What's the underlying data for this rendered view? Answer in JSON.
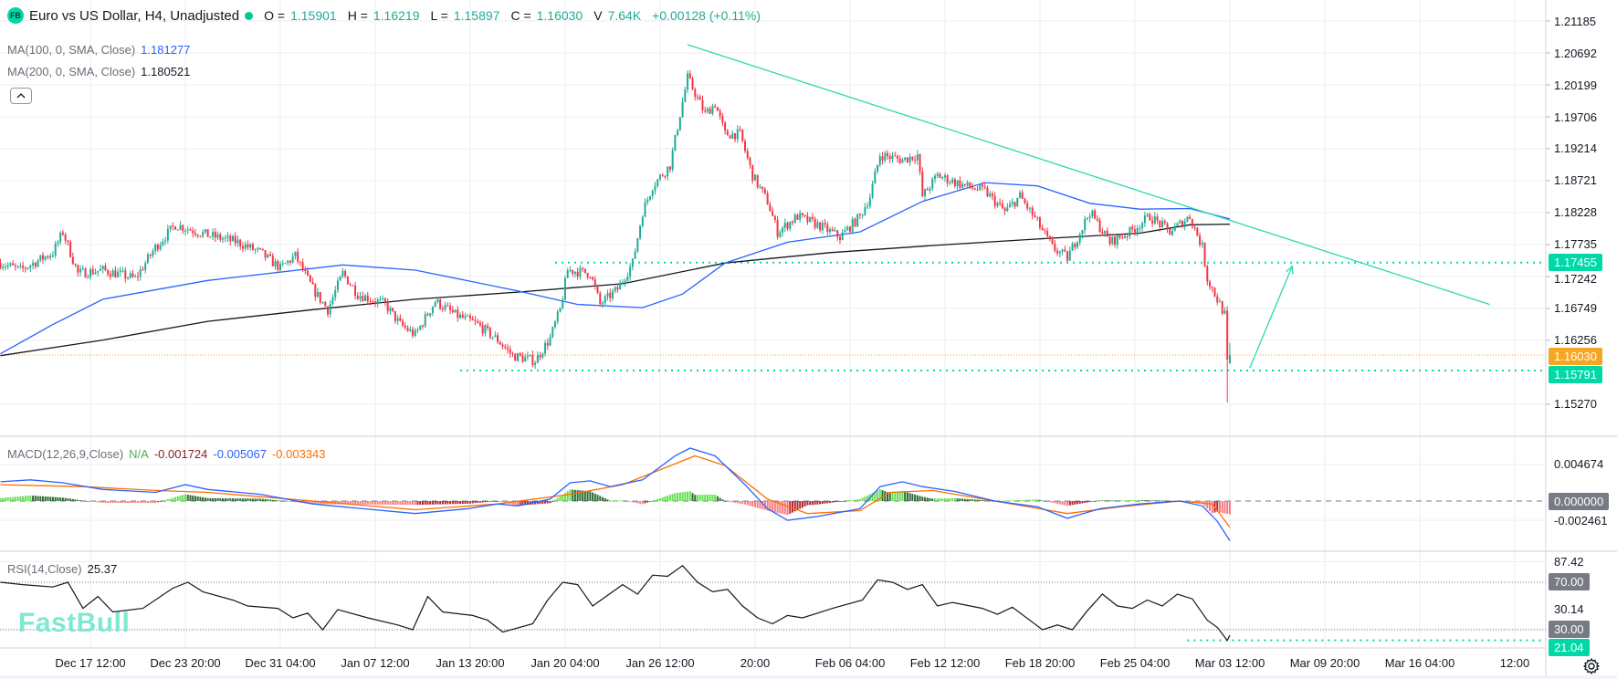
{
  "header": {
    "logo": "FB",
    "title": "Euro vs US Dollar, H4, Unadjusted",
    "status_color": "#00c896",
    "o_label": "O =",
    "o": "1.15901",
    "h_label": "H =",
    "h": "1.16219",
    "l_label": "L =",
    "l": "1.15897",
    "c_label": "C =",
    "c": "1.16030",
    "v_label": "V",
    "v": "7.64K",
    "change": "+0.00128 (+0.11%)"
  },
  "indicators": {
    "ma100": {
      "label": "MA(100, 0, SMA, Close)",
      "value": "1.181277",
      "color": "#2962ff"
    },
    "ma200": {
      "label": "MA(200, 0, SMA, Close)",
      "value": "1.180521",
      "color": "#131722"
    },
    "macd": {
      "label": "MACD(12,26,9,Close)",
      "hist": "N/A",
      "hist_value": "-0.001724",
      "macd_value": "-0.005067",
      "signal_value": "-0.003343"
    },
    "rsi": {
      "label": "RSI(14,Close)",
      "value": "25.37"
    }
  },
  "watermark": "FastBull",
  "colors": {
    "up": "#22ab94",
    "down": "#f23645",
    "drawing": "#2ad8b0",
    "marker_teal": "#00d9a7",
    "marker_orange": "#f5a623",
    "macd_line": "#2962ff",
    "signal_line": "#ff6d00",
    "hist_pos_strong": "#66dd55",
    "hist_pos_weak": "#2e6b35",
    "hist_neg_strong": "#f77c80",
    "hist_neg_weak": "#b22833",
    "rsi_line": "#131722",
    "axis_box": "#787b86",
    "grid": "#eceef2"
  },
  "chart_data": {
    "type": "candlestick",
    "x_ticks": [
      "Dec 17 12:00",
      "Dec 23 20:00",
      "Dec 31 04:00",
      "Jan 07 12:00",
      "Jan 13 20:00",
      "Jan 20 04:00",
      "Jan 26 12:00",
      "20:00",
      "Feb 06 04:00",
      "Feb 12 12:00",
      "Feb 18 20:00",
      "Feb 25 04:00",
      "Mar 03 12:00",
      "Mar 09 20:00",
      "Mar 16 04:00",
      "12:00"
    ],
    "price": {
      "ticks": [
        "1.21185",
        "1.20692",
        "1.20199",
        "1.19706",
        "1.19214",
        "1.18721",
        "1.18228",
        "1.17735",
        "1.17242",
        "1.16749",
        "1.16256",
        "1.15270"
      ],
      "markers": [
        {
          "value": "1.17455",
          "color": "#00d9a7"
        },
        {
          "value": "1.16030",
          "color": "#f5a623"
        },
        {
          "value": "1.15791",
          "color": "#00d9a7"
        }
      ],
      "last_bar": {
        "date": "Mar 03 12:00",
        "open": 1.15901,
        "high": 1.16219,
        "low": 1.15897,
        "close": 1.1603
      },
      "bar_overrides": [
        {
          "date": "Mar 03 08:00",
          "low": 1.153
        }
      ],
      "close_path": [
        [
          "Dec 11 12:00",
          1.1745
        ],
        [
          "Dec 12 20:00",
          1.1734
        ],
        [
          "Dec 15 00:00",
          1.1761
        ],
        [
          "Dec 15 16:00",
          1.1793
        ],
        [
          "Dec 16 16:00",
          1.1729
        ],
        [
          "Dec 18 08:00",
          1.1734
        ],
        [
          "Dec 20 12:00",
          1.1721
        ],
        [
          "Dec 21 20:00",
          1.1769
        ],
        [
          "Dec 23 04:00",
          1.1804
        ],
        [
          "Dec 25 08:00",
          1.1788
        ],
        [
          "Dec 27 08:00",
          1.1777
        ],
        [
          "Dec 28 20:00",
          1.1761
        ],
        [
          "Dec 30 04:00",
          1.1737
        ],
        [
          "Dec 31 04:00",
          1.1756
        ],
        [
          "Jan 01 08:00",
          1.1705
        ],
        [
          "Jan 02 08:00",
          1.1673
        ],
        [
          "Jan 03 08:00",
          1.1729
        ],
        [
          "Jan 04 08:00",
          1.1697
        ],
        [
          "Jan 06 04:00",
          1.1681
        ],
        [
          "Jan 07 04:00",
          1.165
        ],
        [
          "Jan 08 04:00",
          1.1634
        ],
        [
          "Jan 09 12:00",
          1.1686
        ],
        [
          "Jan 10 20:00",
          1.1665
        ],
        [
          "Jan 12 08:00",
          1.165
        ],
        [
          "Jan 13 16:00",
          1.1626
        ],
        [
          "Jan 14 16:00",
          1.1602
        ],
        [
          "Jan 16 04:00",
          1.1594
        ],
        [
          "Jan 17 04:00",
          1.1629
        ],
        [
          "Jan 17 20:00",
          1.1673
        ],
        [
          "Jan 18 08:00",
          1.1734
        ],
        [
          "Jan 19 20:00",
          1.1729
        ],
        [
          "Jan 20 12:00",
          1.1681
        ],
        [
          "Jan 21 16:00",
          1.1705
        ],
        [
          "Jan 22 16:00",
          1.1745
        ],
        [
          "Jan 23 08:00",
          1.1824
        ],
        [
          "Jan 24 00:00",
          1.1864
        ],
        [
          "Jan 25 04:00",
          1.1896
        ],
        [
          "Jan 25 20:00",
          1.1975
        ],
        [
          "Jan 26 08:00",
          1.2031
        ],
        [
          "Jan 27 12:00",
          1.1975
        ],
        [
          "Jan 28 04:00",
          1.1991
        ],
        [
          "Jan 28 20:00",
          1.1944
        ],
        [
          "Jan 29 20:00",
          1.1944
        ],
        [
          "Jan 30 16:00",
          1.188
        ],
        [
          "Jan 31 16:00",
          1.184
        ],
        [
          "Feb 01 08:00",
          1.1793
        ],
        [
          "Feb 02 16:00",
          1.1817
        ],
        [
          "Feb 04 00:00",
          1.1804
        ],
        [
          "Feb 05 12:00",
          1.1785
        ],
        [
          "Feb 06 20:00",
          1.1817
        ],
        [
          "Feb 07 12:00",
          1.1848
        ],
        [
          "Feb 08 04:00",
          1.1912
        ],
        [
          "Feb 09 16:00",
          1.1904
        ],
        [
          "Feb 10 16:00",
          1.1912
        ],
        [
          "Feb 11 00:00",
          1.1848
        ],
        [
          "Feb 12 00:00",
          1.188
        ],
        [
          "Feb 13 20:00",
          1.1864
        ],
        [
          "Feb 15 04:00",
          1.1856
        ],
        [
          "Feb 16 12:00",
          1.1824
        ],
        [
          "Feb 17 12:00",
          1.1848
        ],
        [
          "Feb 18 16:00",
          1.1808
        ],
        [
          "Feb 19 16:00",
          1.1769
        ],
        [
          "Feb 20 16:00",
          1.1753
        ],
        [
          "Feb 22 04:00",
          1.1824
        ],
        [
          "Feb 23 12:00",
          1.1777
        ],
        [
          "Feb 24 20:00",
          1.1793
        ],
        [
          "Feb 26 04:00",
          1.1817
        ],
        [
          "Feb 27 12:00",
          1.1793
        ],
        [
          "Feb 28 20:00",
          1.1817
        ],
        [
          "Mar 01 16:00",
          1.1769
        ],
        [
          "Mar 02 00:00",
          1.1721
        ],
        [
          "Mar 02 16:00",
          1.1689
        ],
        [
          "Mar 03 04:00",
          1.1665
        ],
        [
          "Mar 03 08:00",
          1.159
        ],
        [
          "Mar 03 12:00",
          1.1603
        ]
      ],
      "ma100": [
        [
          "Dec 11 12:00",
          1.1605
        ],
        [
          "Dec 15 00:00",
          1.165
        ],
        [
          "Dec 18 08:00",
          1.1689
        ],
        [
          "Dec 25 08:00",
          1.1718
        ],
        [
          "Jan 03 08:00",
          1.1742
        ],
        [
          "Jan 08 04:00",
          1.1734
        ],
        [
          "Jan 15 00:00",
          1.1702
        ],
        [
          "Jan 19 00:00",
          1.1681
        ],
        [
          "Jan 23 08:00",
          1.1676
        ],
        [
          "Jan 26 00:00",
          1.1697
        ],
        [
          "Jan 28 20:00",
          1.1745
        ],
        [
          "Feb 02 00:00",
          1.1777
        ],
        [
          "Feb 06 20:00",
          1.1793
        ],
        [
          "Feb 11 00:00",
          1.184
        ],
        [
          "Feb 15 04:00",
          1.1869
        ],
        [
          "Feb 18 16:00",
          1.1864
        ],
        [
          "Feb 22 04:00",
          1.1837
        ],
        [
          "Feb 25 12:00",
          1.1828
        ],
        [
          "Feb 28 20:00",
          1.1829
        ],
        [
          "Mar 03 12:00",
          1.1813
        ]
      ],
      "ma200": [
        [
          "Dec 11 12:00",
          1.1602
        ],
        [
          "Dec 18 08:00",
          1.1626
        ],
        [
          "Dec 25 08:00",
          1.1655
        ],
        [
          "Jan 01 08:00",
          1.1673
        ],
        [
          "Jan 08 04:00",
          1.1689
        ],
        [
          "Jan 15 00:00",
          1.17
        ],
        [
          "Jan 22 00:00",
          1.1713
        ],
        [
          "Jan 28 20:00",
          1.1745
        ],
        [
          "Feb 04 20:00",
          1.1761
        ],
        [
          "Feb 11 16:00",
          1.1772
        ],
        [
          "Feb 18 16:00",
          1.1782
        ],
        [
          "Feb 25 12:00",
          1.1791
        ],
        [
          "Feb 28 20:00",
          1.1804
        ],
        [
          "Mar 03 12:00",
          1.1805
        ]
      ]
    },
    "drawings": {
      "trendline": [
        [
          "Jan 26 08:00",
          1.2082
        ],
        [
          "Mar 20 20:00",
          1.1681
        ]
      ],
      "arrow": [
        [
          "Mar 04 20:00",
          1.1583
        ],
        [
          "Mar 07 16:00",
          1.174
        ]
      ],
      "levels": [
        {
          "from": "Jan 17 12:00",
          "value": 1.17455
        },
        {
          "from": "Jan 11 04:00",
          "value": 1.15791
        }
      ],
      "current_price": 1.1603
    },
    "macd": {
      "ticks": [
        "0.004674",
        "-0.002461"
      ],
      "zero_label": "0.000000",
      "macd": [
        [
          "Dec 11 12:00",
          0.00246
        ],
        [
          "Dec 13 12:00",
          0.00271
        ],
        [
          "Dec 15 16:00",
          0.00234
        ],
        [
          "Dec 18 08:00",
          0.00148
        ],
        [
          "Dec 21 20:00",
          0.00111
        ],
        [
          "Dec 23 20:00",
          0.00209
        ],
        [
          "Dec 25 08:00",
          0.00148
        ],
        [
          "Dec 28 20:00",
          0.00086
        ],
        [
          "Jan 01 08:00",
          -0.00037
        ],
        [
          "Jan 04 16:00",
          -0.00098
        ],
        [
          "Jan 08 04:00",
          -0.0016
        ],
        [
          "Jan 11 16:00",
          -0.00098
        ],
        [
          "Jan 13 16:00",
          -0.00037
        ],
        [
          "Jan 15 00:00",
          -0.00062
        ],
        [
          "Jan 17 04:00",
          0.00025
        ],
        [
          "Jan 18 12:00",
          0.00234
        ],
        [
          "Jan 19 20:00",
          0.00258
        ],
        [
          "Jan 21 04:00",
          0.00185
        ],
        [
          "Jan 23 08:00",
          0.00271
        ],
        [
          "Jan 25 12:00",
          0.00578
        ],
        [
          "Jan 26 12:00",
          0.00677
        ],
        [
          "Jan 28 04:00",
          0.00578
        ],
        [
          "Jan 30 04:00",
          0.00209
        ],
        [
          "Jan 31 16:00",
          -0.00098
        ],
        [
          "Feb 02 00:00",
          -0.00246
        ],
        [
          "Feb 04 00:00",
          -0.00197
        ],
        [
          "Feb 06 20:00",
          -0.00098
        ],
        [
          "Feb 08 04:00",
          0.00185
        ],
        [
          "Feb 09 16:00",
          0.00246
        ],
        [
          "Feb 11 00:00",
          0.00185
        ],
        [
          "Feb 13 04:00",
          0.00123
        ],
        [
          "Feb 15 20:00",
          0.0
        ],
        [
          "Feb 18 16:00",
          -0.00074
        ],
        [
          "Feb 20 16:00",
          -0.00221
        ],
        [
          "Feb 22 20:00",
          -0.00098
        ],
        [
          "Feb 25 12:00",
          -0.00037
        ],
        [
          "Feb 28 04:00",
          0.0
        ],
        [
          "Mar 01 16:00",
          -0.00062
        ],
        [
          "Mar 02 16:00",
          -0.00258
        ],
        [
          "Mar 03 12:00",
          -0.005067
        ]
      ],
      "signal": [
        [
          "Dec 11 12:00",
          0.00209
        ],
        [
          "Dec 17 00:00",
          0.00185
        ],
        [
          "Dec 21 20:00",
          0.00135
        ],
        [
          "Dec 25 08:00",
          0.00111
        ],
        [
          "Jan 01 08:00",
          0.0
        ],
        [
          "Jan 08 04:00",
          -0.00111
        ],
        [
          "Jan 13 16:00",
          -0.00037
        ],
        [
          "Jan 18 12:00",
          0.00086
        ],
        [
          "Jan 22 00:00",
          0.00209
        ],
        [
          "Jan 26 20:00",
          0.00578
        ],
        [
          "Jan 28 20:00",
          0.00455
        ],
        [
          "Jan 31 16:00",
          0.00025
        ],
        [
          "Feb 03 08:00",
          -0.0016
        ],
        [
          "Feb 06 20:00",
          -0.00123
        ],
        [
          "Feb 08 20:00",
          0.00111
        ],
        [
          "Feb 11 16:00",
          0.00135
        ],
        [
          "Feb 15 20:00",
          0.0
        ],
        [
          "Feb 20 16:00",
          -0.0016
        ],
        [
          "Feb 24 04:00",
          -0.00074
        ],
        [
          "Feb 28 04:00",
          0.0
        ],
        [
          "Mar 02 08:00",
          -0.00037
        ],
        [
          "Mar 03 12:00",
          -0.003343
        ]
      ]
    },
    "rsi": {
      "ticks": [
        "87.42",
        "30.14"
      ],
      "levels": [
        {
          "value": 70,
          "label": "70.00"
        },
        {
          "value": 30,
          "label": "30.00"
        }
      ],
      "marker": {
        "value": 21.04,
        "label": "21.04",
        "from": "Feb 28 16:00"
      },
      "values": [
        [
          "Dec 11 12:00",
          70
        ],
        [
          "Dec 13 00:00",
          68
        ],
        [
          "Dec 15 00:00",
          66
        ],
        [
          "Dec 16 00:00",
          70
        ],
        [
          "Dec 17 00:00",
          48
        ],
        [
          "Dec 18 00:00",
          58
        ],
        [
          "Dec 19 00:00",
          45
        ],
        [
          "Dec 21 00:00",
          48
        ],
        [
          "Dec 23 00:00",
          65
        ],
        [
          "Dec 24 00:00",
          70
        ],
        [
          "Dec 25 00:00",
          62
        ],
        [
          "Dec 27 00:00",
          55
        ],
        [
          "Dec 28 00:00",
          50
        ],
        [
          "Dec 30 00:00",
          48
        ],
        [
          "Dec 31 00:00",
          40
        ],
        [
          "Jan 01 00:00",
          44
        ],
        [
          "Jan 02 00:00",
          30
        ],
        [
          "Jan 03 00:00",
          47
        ],
        [
          "Jan 05 00:00",
          40
        ],
        [
          "Jan 07 00:00",
          34
        ],
        [
          "Jan 08 00:00",
          30
        ],
        [
          "Jan 09 00:00",
          58
        ],
        [
          "Jan 10 00:00",
          45
        ],
        [
          "Jan 12 00:00",
          42
        ],
        [
          "Jan 13 00:00",
          38
        ],
        [
          "Jan 14 00:00",
          28
        ],
        [
          "Jan 16 00:00",
          35
        ],
        [
          "Jan 17 00:00",
          55
        ],
        [
          "Jan 18 00:00",
          70
        ],
        [
          "Jan 19 00:00",
          68
        ],
        [
          "Jan 20 00:00",
          50
        ],
        [
          "Jan 22 00:00",
          68
        ],
        [
          "Jan 23 00:00",
          60
        ],
        [
          "Jan 24 00:00",
          76
        ],
        [
          "Jan 25 00:00",
          75
        ],
        [
          "Jan 26 00:00",
          84
        ],
        [
          "Jan 27 00:00",
          70
        ],
        [
          "Jan 28 00:00",
          62
        ],
        [
          "Jan 29 00:00",
          64
        ],
        [
          "Jan 30 00:00",
          50
        ],
        [
          "Jan 31 00:00",
          40
        ],
        [
          "Feb 01 00:00",
          35
        ],
        [
          "Feb 02 00:00",
          42
        ],
        [
          "Feb 03 00:00",
          40
        ],
        [
          "Feb 05 00:00",
          48
        ],
        [
          "Feb 07 00:00",
          55
        ],
        [
          "Feb 08 00:00",
          72
        ],
        [
          "Feb 09 00:00",
          70
        ],
        [
          "Feb 10 00:00",
          64
        ],
        [
          "Feb 11 00:00",
          68
        ],
        [
          "Feb 12 00:00",
          50
        ],
        [
          "Feb 13 00:00",
          53
        ],
        [
          "Feb 15 00:00",
          48
        ],
        [
          "Feb 16 00:00",
          43
        ],
        [
          "Feb 17 00:00",
          49
        ],
        [
          "Feb 19 00:00",
          30
        ],
        [
          "Feb 20 00:00",
          34
        ],
        [
          "Feb 21 00:00",
          30
        ],
        [
          "Feb 22 00:00",
          46
        ],
        [
          "Feb 23 00:00",
          60
        ],
        [
          "Feb 24 00:00",
          50
        ],
        [
          "Feb 25 00:00",
          48
        ],
        [
          "Feb 26 00:00",
          55
        ],
        [
          "Feb 27 00:00",
          50
        ],
        [
          "Feb 28 00:00",
          60
        ],
        [
          "Mar 01 00:00",
          56
        ],
        [
          "Mar 02 00:00",
          38
        ],
        [
          "Mar 02 16:00",
          32
        ],
        [
          "Mar 03 08:00",
          21
        ],
        [
          "Mar 03 12:00",
          25.37
        ]
      ]
    }
  }
}
